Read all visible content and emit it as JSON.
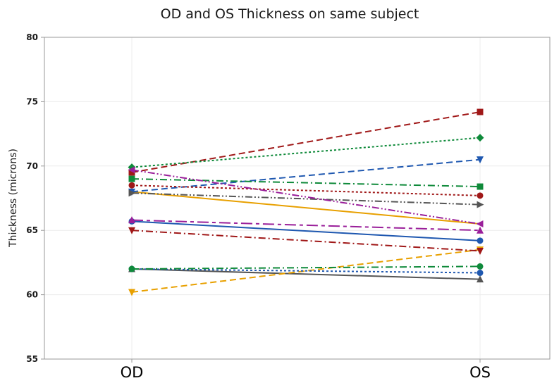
{
  "chart_data": {
    "type": "line",
    "title": "OD and OS Thickness on same subject",
    "xlabel": "",
    "ylabel": "Thickness (microns)",
    "categories": [
      "OD",
      "OS"
    ],
    "ylim": [
      55,
      80
    ],
    "yticks": [
      55,
      60,
      65,
      70,
      75,
      80
    ],
    "grid": true,
    "legend": "none",
    "series": [
      {
        "values": [
          68.0,
          65.5
        ],
        "color": "#e8a000",
        "marker": "none",
        "dash": "solid"
      },
      {
        "values": [
          65.7,
          64.2
        ],
        "color": "#1f58b0",
        "marker": "circle",
        "dash": "solid"
      },
      {
        "values": [
          62.0,
          61.2
        ],
        "color": "#555555",
        "marker": "triangle-up",
        "dash": "solid"
      },
      {
        "values": [
          69.5,
          74.2
        ],
        "color": "#a01818",
        "marker": "square",
        "dash": "dashed"
      },
      {
        "values": [
          68.0,
          70.5
        ],
        "color": "#1f58b0",
        "marker": "triangle-down",
        "dash": "dashed"
      },
      {
        "values": [
          60.2,
          63.5
        ],
        "color": "#e8a000",
        "marker": "triangle-down",
        "dash": "dashed"
      },
      {
        "values": [
          69.9,
          72.2
        ],
        "color": "#0f8a3a",
        "marker": "diamond",
        "dash": "dotted"
      },
      {
        "values": [
          68.5,
          67.7
        ],
        "color": "#a01818",
        "marker": "circle",
        "dash": "dotted"
      },
      {
        "values": [
          62.0,
          61.7
        ],
        "color": "#1f58b0",
        "marker": "circle",
        "dash": "dotted"
      },
      {
        "values": [
          69.0,
          68.4
        ],
        "color": "#0f8a3a",
        "marker": "square",
        "dash": "dashdot"
      },
      {
        "values": [
          65.0,
          63.4
        ],
        "color": "#a01818",
        "marker": "triangle-down",
        "dash": "dashdot"
      },
      {
        "values": [
          62.0,
          62.2
        ],
        "color": "#0f8a3a",
        "marker": "circle",
        "dash": "dashdot"
      },
      {
        "values": [
          67.9,
          67.0
        ],
        "color": "#555555",
        "marker": "triangle-right",
        "dash": "dashdotdot"
      },
      {
        "values": [
          69.7,
          65.5
        ],
        "color": "#9a1f9a",
        "marker": "triangle-left",
        "dash": "dashdotdot"
      },
      {
        "values": [
          65.8,
          65.0
        ],
        "color": "#9a1f9a",
        "marker": "triangle-up",
        "dash": "longdash"
      }
    ]
  }
}
